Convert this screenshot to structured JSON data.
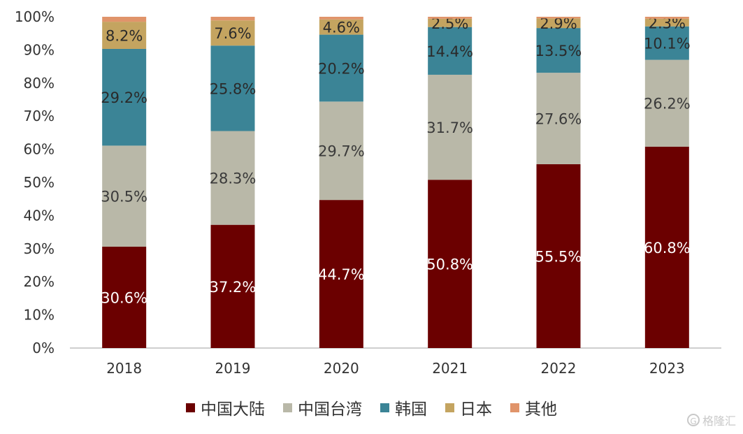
{
  "chart_data": {
    "type": "bar",
    "stacked": true,
    "categories": [
      "2018",
      "2019",
      "2020",
      "2021",
      "2022",
      "2023"
    ],
    "y_ticks": [
      "0%",
      "10%",
      "20%",
      "30%",
      "40%",
      "50%",
      "60%",
      "70%",
      "80%",
      "90%",
      "100%"
    ],
    "ylim": [
      0,
      100
    ],
    "series": [
      {
        "name": "中国大陆",
        "color": "#6b0000",
        "label_color": "#ffffff",
        "values": [
          30.6,
          37.2,
          44.7,
          50.8,
          55.5,
          60.8
        ],
        "labels": [
          "30.6%",
          "37.2%",
          "44.7%",
          "50.8%",
          "55.5%",
          "60.8%"
        ]
      },
      {
        "name": "中国台湾",
        "color": "#b9b8a8",
        "label_color": "#3a3a3a",
        "values": [
          30.5,
          28.3,
          29.7,
          31.7,
          27.6,
          26.2
        ],
        "labels": [
          "30.5%",
          "28.3%",
          "29.7%",
          "31.7%",
          "27.6%",
          "26.2%"
        ]
      },
      {
        "name": "韩国",
        "color": "#3b8496",
        "label_color": "#2a2a2a",
        "values": [
          29.2,
          25.8,
          20.2,
          14.4,
          13.5,
          10.1
        ],
        "labels": [
          "29.2%",
          "25.8%",
          "20.2%",
          "14.4%",
          "13.5%",
          "10.1%"
        ]
      },
      {
        "name": "日本",
        "color": "#c4a460",
        "label_color": "#2a2a2a",
        "values": [
          8.2,
          7.6,
          4.6,
          2.5,
          2.9,
          2.3
        ],
        "labels": [
          "8.2%",
          "7.6%",
          "4.6%",
          "2.5%",
          "2.9%",
          "2.3%"
        ]
      },
      {
        "name": "其他",
        "color": "#e0946a",
        "label_color": "#2a2a2a",
        "values": [
          1.5,
          1.7,
          0.8,
          0.6,
          0.5,
          0.6
        ],
        "labels": [
          "",
          "",
          "",
          "",
          "",
          ""
        ]
      }
    ],
    "legend_position": "bottom",
    "grid": false
  },
  "watermark": {
    "text": "格隆汇",
    "icon": "G"
  }
}
